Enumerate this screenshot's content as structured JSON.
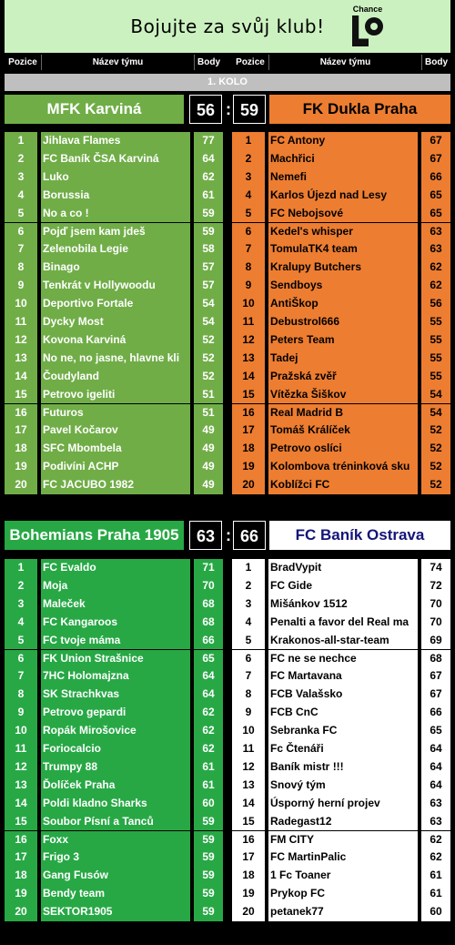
{
  "banner": {
    "title": "Bojujte za svůj klub!",
    "logo_text": "Chance",
    "logo_icon": "chance-logo"
  },
  "header": {
    "pos": "Pozice",
    "team": "Název týmu",
    "pts": "Body"
  },
  "round_label": "1. KOLO",
  "colors": {
    "green1": "#70ad47",
    "green2": "#27a845",
    "orange": "#ed7d31",
    "white": "#ffffff"
  },
  "match1": {
    "left_team": "MFK Karviná",
    "left_score": "56",
    "right_score": "59",
    "right_team": "FK Dukla Praha",
    "separator": ":",
    "left_rows": [
      {
        "p": "1",
        "n": "Jihlava Flames",
        "b": "77"
      },
      {
        "p": "2",
        "n": "FC Baník ČSA Karviná",
        "b": "64"
      },
      {
        "p": "3",
        "n": "Luko",
        "b": "62"
      },
      {
        "p": "4",
        "n": "Borussia",
        "b": "61"
      },
      {
        "p": "5",
        "n": "No a co !",
        "b": "59"
      },
      {
        "p": "6",
        "n": "Pojď jsem kam jdeš",
        "b": "59"
      },
      {
        "p": "7",
        "n": "Zelenobila Legie",
        "b": "58"
      },
      {
        "p": "8",
        "n": "Binago",
        "b": "57"
      },
      {
        "p": "9",
        "n": "Tenkrát v Hollywoodu",
        "b": "57"
      },
      {
        "p": "10",
        "n": "Deportivo Fortale",
        "b": "54"
      },
      {
        "p": "11",
        "n": "Dycky Most",
        "b": "54"
      },
      {
        "p": "12",
        "n": "Kovona Karviná",
        "b": "52"
      },
      {
        "p": "13",
        "n": "No ne, no jasne, hlavne kli",
        "b": "52"
      },
      {
        "p": "14",
        "n": "Čoudyland",
        "b": "52"
      },
      {
        "p": "15",
        "n": "Petrovo igeliti",
        "b": "51"
      },
      {
        "p": "16",
        "n": "Futuros",
        "b": "51"
      },
      {
        "p": "17",
        "n": "Pavel Kočarov",
        "b": "49"
      },
      {
        "p": "18",
        "n": "SFC Mbombela",
        "b": "49"
      },
      {
        "p": "19",
        "n": "Podivíni ACHP",
        "b": "49"
      },
      {
        "p": "20",
        "n": "FC JACUBO 1982",
        "b": "49"
      }
    ],
    "right_rows": [
      {
        "p": "1",
        "n": "FC Antony",
        "b": "67"
      },
      {
        "p": "2",
        "n": "Machřici",
        "b": "67"
      },
      {
        "p": "3",
        "n": "Nemefi",
        "b": "66"
      },
      {
        "p": "4",
        "n": "Karlos Újezd nad Lesy",
        "b": "65"
      },
      {
        "p": "5",
        "n": "FC Nebojsové",
        "b": "65"
      },
      {
        "p": "6",
        "n": "Kedel's whisper",
        "b": "63"
      },
      {
        "p": "7",
        "n": "TomulaTK4 team",
        "b": "63"
      },
      {
        "p": "8",
        "n": "Kralupy Butchers",
        "b": "62"
      },
      {
        "p": "9",
        "n": "Sendboys",
        "b": "62"
      },
      {
        "p": "10",
        "n": "AntiŠkop",
        "b": "56"
      },
      {
        "p": "11",
        "n": "Debustrol666",
        "b": "55"
      },
      {
        "p": "12",
        "n": "Peters Team",
        "b": "55"
      },
      {
        "p": "13",
        "n": "Tadej",
        "b": "55"
      },
      {
        "p": "14",
        "n": "Pražská zvěř",
        "b": "55"
      },
      {
        "p": "15",
        "n": "Vítězka Šiškov",
        "b": "54"
      },
      {
        "p": "16",
        "n": "Real Madrid B",
        "b": "54"
      },
      {
        "p": "17",
        "n": "Tomáš Králíček",
        "b": "52"
      },
      {
        "p": "18",
        "n": "Petrovo oslíci",
        "b": "52"
      },
      {
        "p": "19",
        "n": "Kolombova tréninková sku",
        "b": "52"
      },
      {
        "p": "20",
        "n": "Koblížci FC",
        "b": "52"
      }
    ]
  },
  "match2": {
    "left_team": "Bohemians Praha 1905",
    "left_score": "63",
    "right_score": "66",
    "right_team": "FC Baník Ostrava",
    "separator": ":",
    "left_rows": [
      {
        "p": "1",
        "n": "FC Evaldo",
        "b": "71"
      },
      {
        "p": "2",
        "n": "Moja",
        "b": "70"
      },
      {
        "p": "3",
        "n": "Maleček",
        "b": "68"
      },
      {
        "p": "4",
        "n": "FC Kangaroos",
        "b": "68"
      },
      {
        "p": "5",
        "n": "FC tvoje máma",
        "b": "66"
      },
      {
        "p": "6",
        "n": "FK Union Strašnice",
        "b": "65"
      },
      {
        "p": "7",
        "n": "7HC Holomajzna",
        "b": "64"
      },
      {
        "p": "8",
        "n": "SK Strachkvas",
        "b": "64"
      },
      {
        "p": "9",
        "n": "Petrovo gepardi",
        "b": "62"
      },
      {
        "p": "10",
        "n": "Ropák Mirošovice",
        "b": "62"
      },
      {
        "p": "11",
        "n": "Foriocalcio",
        "b": "62"
      },
      {
        "p": "12",
        "n": "Trumpy 88",
        "b": "61"
      },
      {
        "p": "13",
        "n": "Ďolíček Praha",
        "b": "61"
      },
      {
        "p": "14",
        "n": "Poldi kladno Sharks",
        "b": "60"
      },
      {
        "p": "15",
        "n": "Soubor Písní a Tanců",
        "b": "59"
      },
      {
        "p": "16",
        "n": "Foxx",
        "b": "59"
      },
      {
        "p": "17",
        "n": "Frigo 3",
        "b": "59"
      },
      {
        "p": "18",
        "n": "Gang Fusów",
        "b": "59"
      },
      {
        "p": "19",
        "n": "Bendy team",
        "b": "59"
      },
      {
        "p": "20",
        "n": "SEKTOR1905",
        "b": "59"
      }
    ],
    "right_rows": [
      {
        "p": "1",
        "n": "BradVypit",
        "b": "74"
      },
      {
        "p": "2",
        "n": "FC Gide",
        "b": "72"
      },
      {
        "p": "3",
        "n": "Mišánkov 1512",
        "b": "70"
      },
      {
        "p": "4",
        "n": "Penalti a favor del Real ma",
        "b": "70"
      },
      {
        "p": "5",
        "n": "Krakonos-all-star-team",
        "b": "69"
      },
      {
        "p": "6",
        "n": "FC ne se nechce",
        "b": "68"
      },
      {
        "p": "7",
        "n": "FC Martavana",
        "b": "67"
      },
      {
        "p": "8",
        "n": "FCB Valašsko",
        "b": "67"
      },
      {
        "p": "9",
        "n": "FCB CnC",
        "b": "66"
      },
      {
        "p": "10",
        "n": "Sebranka FC",
        "b": "65"
      },
      {
        "p": "11",
        "n": "Fc Čtenáři",
        "b": "64"
      },
      {
        "p": "12",
        "n": "Baník mistr !!!",
        "b": "64"
      },
      {
        "p": "13",
        "n": "Snový tým",
        "b": "64"
      },
      {
        "p": "14",
        "n": "Úsporný herní projev",
        "b": "63"
      },
      {
        "p": "15",
        "n": "Radegast12",
        "b": "63"
      },
      {
        "p": "16",
        "n": "FM CITY",
        "b": "62"
      },
      {
        "p": "17",
        "n": "FC MartinPalic",
        "b": "62"
      },
      {
        "p": "18",
        "n": "1 Fc Toaner",
        "b": "61"
      },
      {
        "p": "19",
        "n": "Prykop FC",
        "b": "61"
      },
      {
        "p": "20",
        "n": "petanek77",
        "b": "60"
      }
    ]
  }
}
